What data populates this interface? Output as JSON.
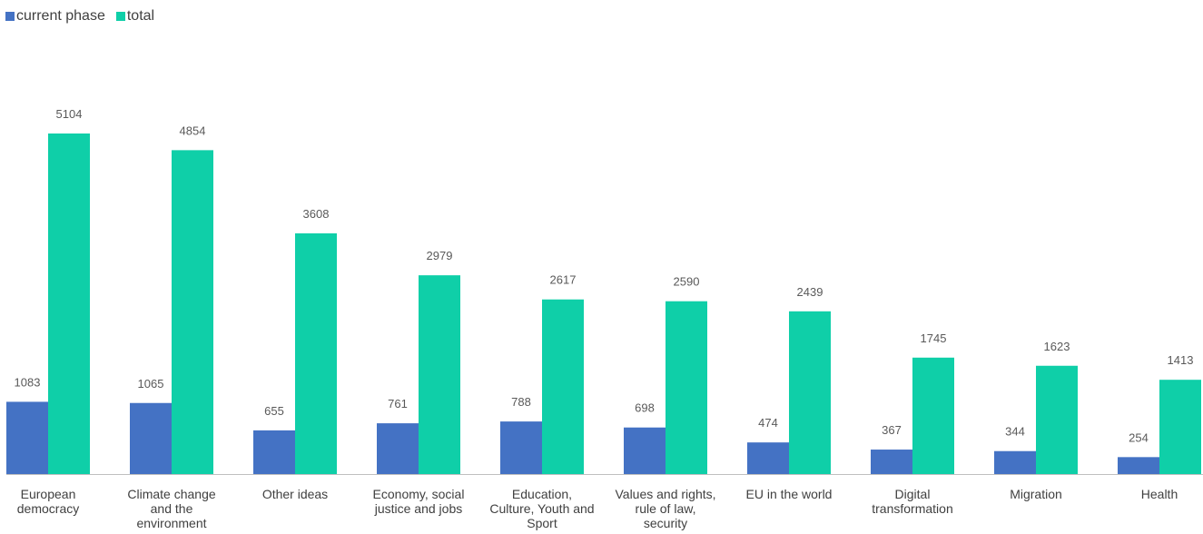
{
  "colors": {
    "current_phase": "#4472c4",
    "total": "#0fcfa8",
    "axis": "#bfbfbf"
  },
  "chart_data": {
    "type": "bar",
    "categories": [
      [
        "European",
        "democracy"
      ],
      [
        "Climate change",
        "and the",
        "environment"
      ],
      [
        "Other ideas"
      ],
      [
        "Economy, social",
        "justice and jobs"
      ],
      [
        "Education,",
        "Culture, Youth and",
        "Sport"
      ],
      [
        "Values and rights,",
        "rule of law,",
        "security"
      ],
      [
        "EU in the world"
      ],
      [
        "Digital",
        "transformation"
      ],
      [
        "Migration"
      ],
      [
        "Health"
      ]
    ],
    "series": [
      {
        "name": "current phase",
        "values": [
          1083,
          1065,
          655,
          761,
          788,
          698,
          474,
          367,
          344,
          254
        ]
      },
      {
        "name": "total",
        "values": [
          5104,
          4854,
          3608,
          2979,
          2617,
          2590,
          2439,
          1745,
          1623,
          1413
        ]
      }
    ],
    "ylim": [
      0,
      5104
    ],
    "legend": "top-left",
    "grid": false
  }
}
